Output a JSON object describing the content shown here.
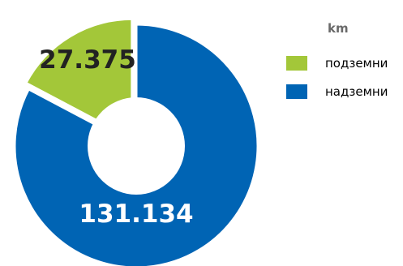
{
  "chart_data": {
    "type": "pie",
    "donut": true,
    "title": "",
    "legend_title": "km",
    "legend_position": "right",
    "slices": [
      {
        "name": "подземни",
        "value": 27375,
        "label": "27.375",
        "color": "#a3c739"
      },
      {
        "name": "надземни",
        "value": 131134,
        "label": "131.134",
        "color": "#0064b4"
      }
    ]
  }
}
